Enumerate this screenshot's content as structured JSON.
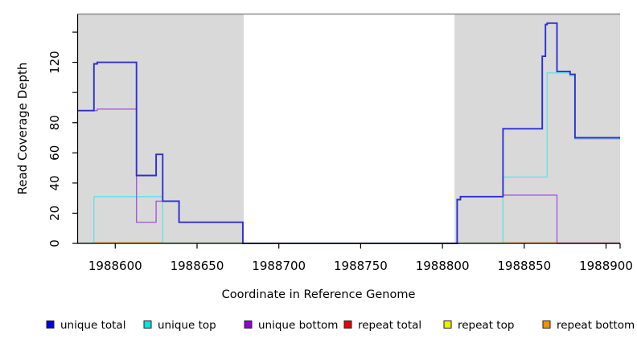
{
  "chart_data": {
    "type": "line",
    "subtype": "step-coverage-plot",
    "title": "",
    "xlabel": "Coordinate in Reference Genome",
    "ylabel": "Read Coverage Depth",
    "xlim": [
      1988577,
      1988908.6
    ],
    "ylim": [
      0,
      152
    ],
    "x_ticks": [
      1988600,
      1988650,
      1988700,
      1988750,
      1988800,
      1988850,
      1988900
    ],
    "has_unlabeled_end_tick": true,
    "y_ticks": [
      0,
      20,
      40,
      60,
      80,
      100,
      120,
      140
    ],
    "y_ticks_labeled": [
      0,
      20,
      40,
      60,
      80,
      120
    ],
    "grid": false,
    "legend_position": "bottom",
    "colors": {
      "background": "#ffffff",
      "shaded_region": "#d9d9d9",
      "plot_top_border": "#8c8c8c",
      "axis": "#000000"
    },
    "shaded_regions": [
      {
        "name": "left-gray-region",
        "x0": 1988577,
        "x1": 1988678.5
      },
      {
        "name": "right-gray-region",
        "x0": 1988807.4,
        "x1": 1988908.6
      }
    ],
    "series": [
      {
        "name": "unique top",
        "color": "#66E0E3",
        "width": 1.3,
        "z": 1,
        "draw": true,
        "steps": [
          [
            1988577,
            0
          ],
          [
            1988587,
            31
          ],
          [
            1988629,
            0
          ],
          [
            1988837,
            44
          ],
          [
            1988864,
            113
          ],
          [
            1988878,
            111
          ],
          [
            1988881,
            69
          ]
        ]
      },
      {
        "name": "unique bottom",
        "color": "#A55BD8",
        "width": 1.4,
        "z": 2,
        "draw": true,
        "steps": [
          [
            1988577,
            88
          ],
          [
            1988589,
            89
          ],
          [
            1988613,
            14
          ],
          [
            1988625,
            28
          ],
          [
            1988639,
            14
          ],
          [
            1988678,
            0
          ],
          [
            1988809,
            29
          ],
          [
            1988811,
            31
          ],
          [
            1988837,
            32
          ],
          [
            1988870,
            0
          ]
        ]
      },
      {
        "name": "unique total",
        "color": "#2E2ED6",
        "width": 1.9,
        "z": 4,
        "draw": true,
        "steps": [
          [
            1988577,
            88
          ],
          [
            1988587,
            119
          ],
          [
            1988589,
            120
          ],
          [
            1988613,
            45
          ],
          [
            1988625,
            59
          ],
          [
            1988629,
            28
          ],
          [
            1988639,
            14
          ],
          [
            1988678,
            0
          ],
          [
            1988809,
            29
          ],
          [
            1988811,
            31
          ],
          [
            1988837,
            76
          ],
          [
            1988861,
            124
          ],
          [
            1988863,
            145
          ],
          [
            1988864,
            146
          ],
          [
            1988870,
            114
          ],
          [
            1988878,
            112
          ],
          [
            1988881,
            70
          ]
        ]
      },
      {
        "name": "repeat total",
        "color": "#EE0000",
        "width": 1.4,
        "z": 0,
        "draw": false,
        "steps": [
          [
            1988577,
            0
          ]
        ]
      },
      {
        "name": "repeat top",
        "color": "#EEEE00",
        "width": 1.4,
        "z": 0,
        "draw": false,
        "steps": [
          [
            1988577,
            0
          ]
        ]
      },
      {
        "name": "repeat bottom",
        "color": "#F39200",
        "width": 1.4,
        "z": 0,
        "draw": false,
        "steps": [
          [
            1988577,
            0
          ]
        ]
      }
    ],
    "zero_line_overlays": [
      {
        "name": "zero-green-left",
        "color": "#8FCD8F",
        "width": 1.5,
        "x0": 1988577,
        "x1": 1988678.5
      },
      {
        "name": "zero-orange-left",
        "color": "#FF9015",
        "width": 1.7,
        "x0": 1988587,
        "x1": 1988629
      },
      {
        "name": "zero-green-right",
        "color": "#8FCD8F",
        "width": 1.5,
        "x0": 1988807.4,
        "x1": 1988837
      },
      {
        "name": "zero-orange-right",
        "color": "#FF9015",
        "width": 1.7,
        "x0": 1988837,
        "x1": 1988870
      },
      {
        "name": "zero-crimson-right",
        "color": "#DB5C86",
        "width": 1.5,
        "x0": 1988870,
        "x1": 1988908.6
      }
    ],
    "legend": [
      {
        "label": "unique total",
        "color": "#0000EE"
      },
      {
        "label": "unique top",
        "color": "#00E5E5"
      },
      {
        "label": "unique bottom",
        "color": "#9400D3"
      },
      {
        "label": "repeat total",
        "color": "#EE0000"
      },
      {
        "label": "repeat top",
        "color": "#EEEE00"
      },
      {
        "label": "repeat bottom",
        "color": "#F39200"
      }
    ]
  }
}
